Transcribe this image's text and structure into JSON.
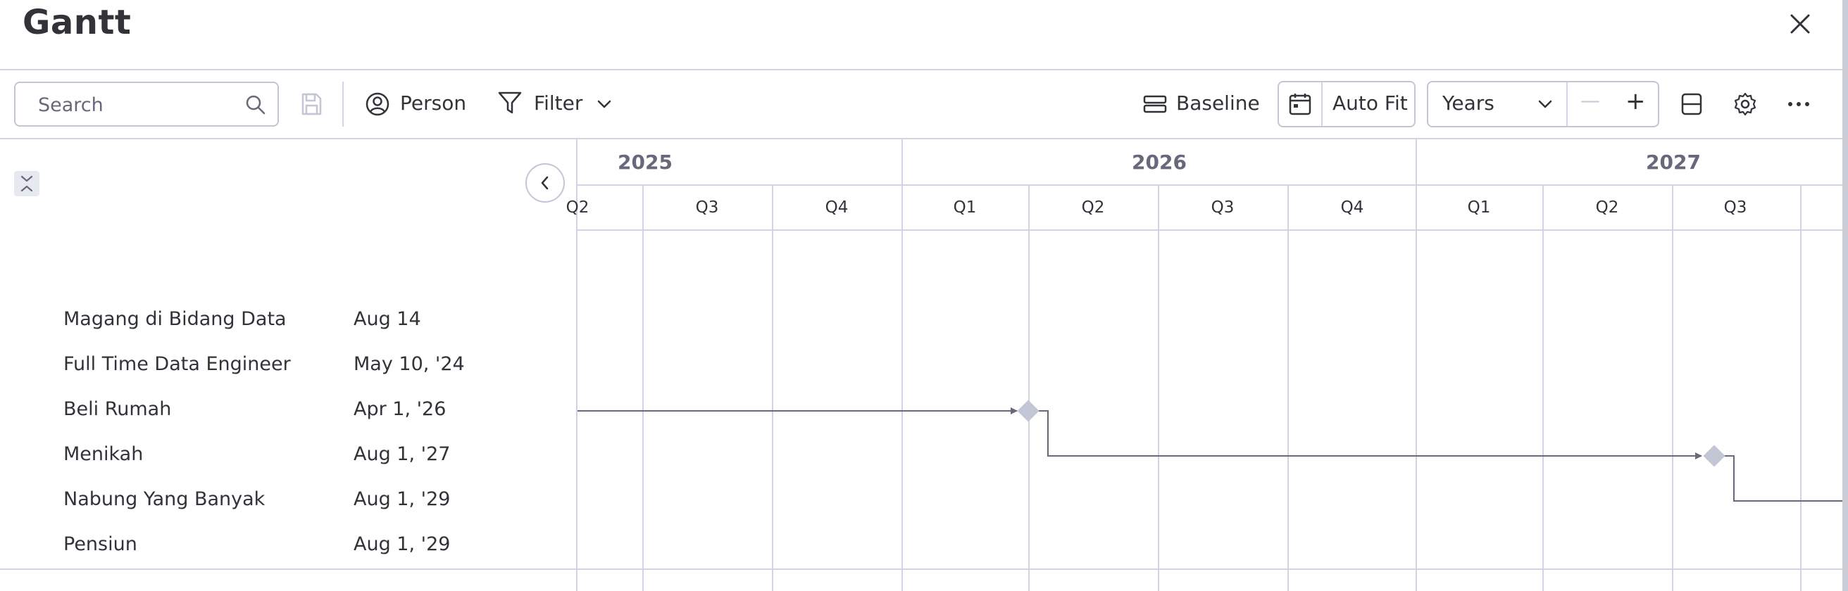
{
  "header": {
    "title": "Gantt"
  },
  "toolbar": {
    "search_placeholder": "Search",
    "person_label": "Person",
    "filter_label": "Filter",
    "baseline_label": "Baseline",
    "autofit_label": "Auto Fit",
    "zoom_value": "Years",
    "zoom_out_symbol": "—",
    "zoom_in_symbol": "+"
  },
  "tasks": [
    {
      "name": "Magang di Bidang Data",
      "date": "Aug 14"
    },
    {
      "name": "Full Time Data Engineer",
      "date": "May 10, '24"
    },
    {
      "name": "Beli Rumah",
      "date": "Apr 1, '26"
    },
    {
      "name": "Menikah",
      "date": "Aug 1, '27"
    },
    {
      "name": "Nabung Yang Banyak",
      "date": "Aug 1, '29"
    },
    {
      "name": "Pensiun",
      "date": "Aug 1, '29"
    }
  ],
  "timeline": {
    "years": [
      "2025",
      "2026",
      "2027"
    ],
    "quarters": [
      "Q2",
      "Q3",
      "Q4",
      "Q1",
      "Q2",
      "Q3",
      "Q4",
      "Q1",
      "Q2",
      "Q3"
    ]
  },
  "colors": {
    "grid": "#d0d4e4",
    "milestone": "#c3c6d4",
    "dependency_line": "#676879",
    "text": "#323338"
  }
}
